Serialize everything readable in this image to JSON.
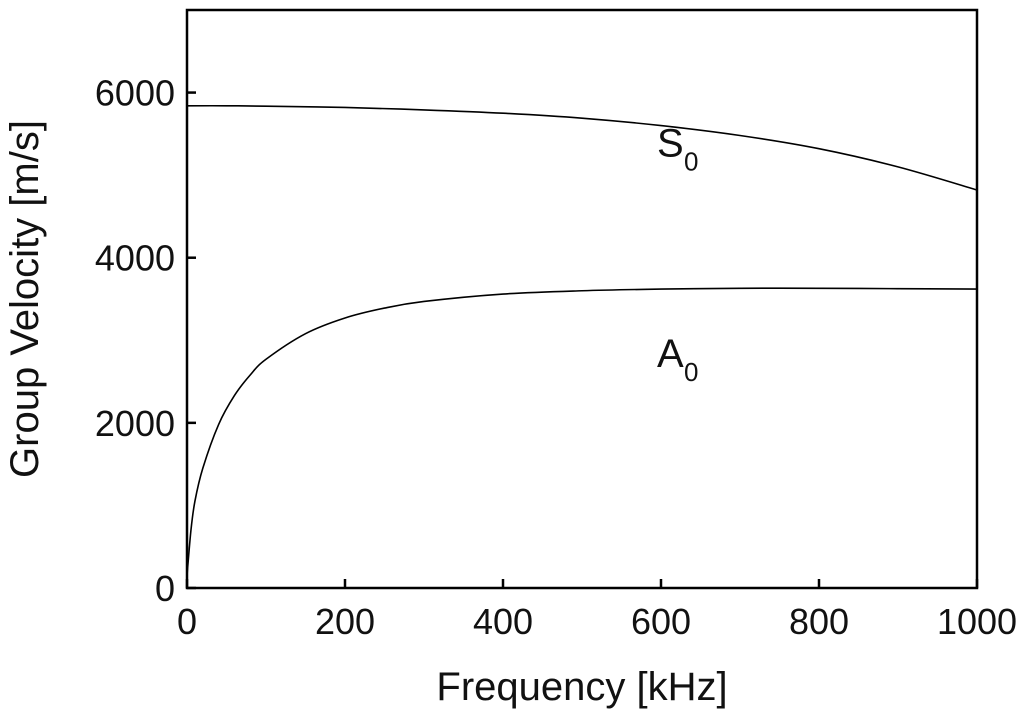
{
  "chart_data": {
    "type": "line",
    "title": "",
    "xlabel": "Frequency [kHz]",
    "ylabel": "Group Velocity [m/s]",
    "xlim": [
      0,
      1000
    ],
    "ylim": [
      0,
      7000
    ],
    "xticks": [
      0,
      200,
      400,
      600,
      800,
      1000
    ],
    "yticks": [
      0,
      2000,
      4000,
      6000
    ],
    "grid": false,
    "legend": "none",
    "line_color": "#000000",
    "series": [
      {
        "name": "S0",
        "label_main": "S",
        "label_sub": "0",
        "x": [
          0,
          50,
          100,
          200,
          300,
          400,
          500,
          600,
          700,
          800,
          900,
          1000
        ],
        "y": [
          5840,
          5840,
          5835,
          5820,
          5790,
          5750,
          5690,
          5600,
          5480,
          5320,
          5100,
          4820
        ]
      },
      {
        "name": "A0",
        "label_main": "A",
        "label_sub": "0",
        "x": [
          0,
          5,
          10,
          20,
          40,
          60,
          80,
          100,
          150,
          200,
          250,
          300,
          400,
          500,
          600,
          700,
          800,
          900,
          1000
        ],
        "y": [
          150,
          700,
          1050,
          1450,
          1980,
          2330,
          2580,
          2770,
          3080,
          3270,
          3390,
          3470,
          3560,
          3600,
          3620,
          3630,
          3630,
          3625,
          3620
        ]
      }
    ],
    "annotation_positions": [
      {
        "series": 0,
        "x": 300,
        "y": 5250
      },
      {
        "series": 1,
        "x": 300,
        "y": 2700
      }
    ]
  }
}
